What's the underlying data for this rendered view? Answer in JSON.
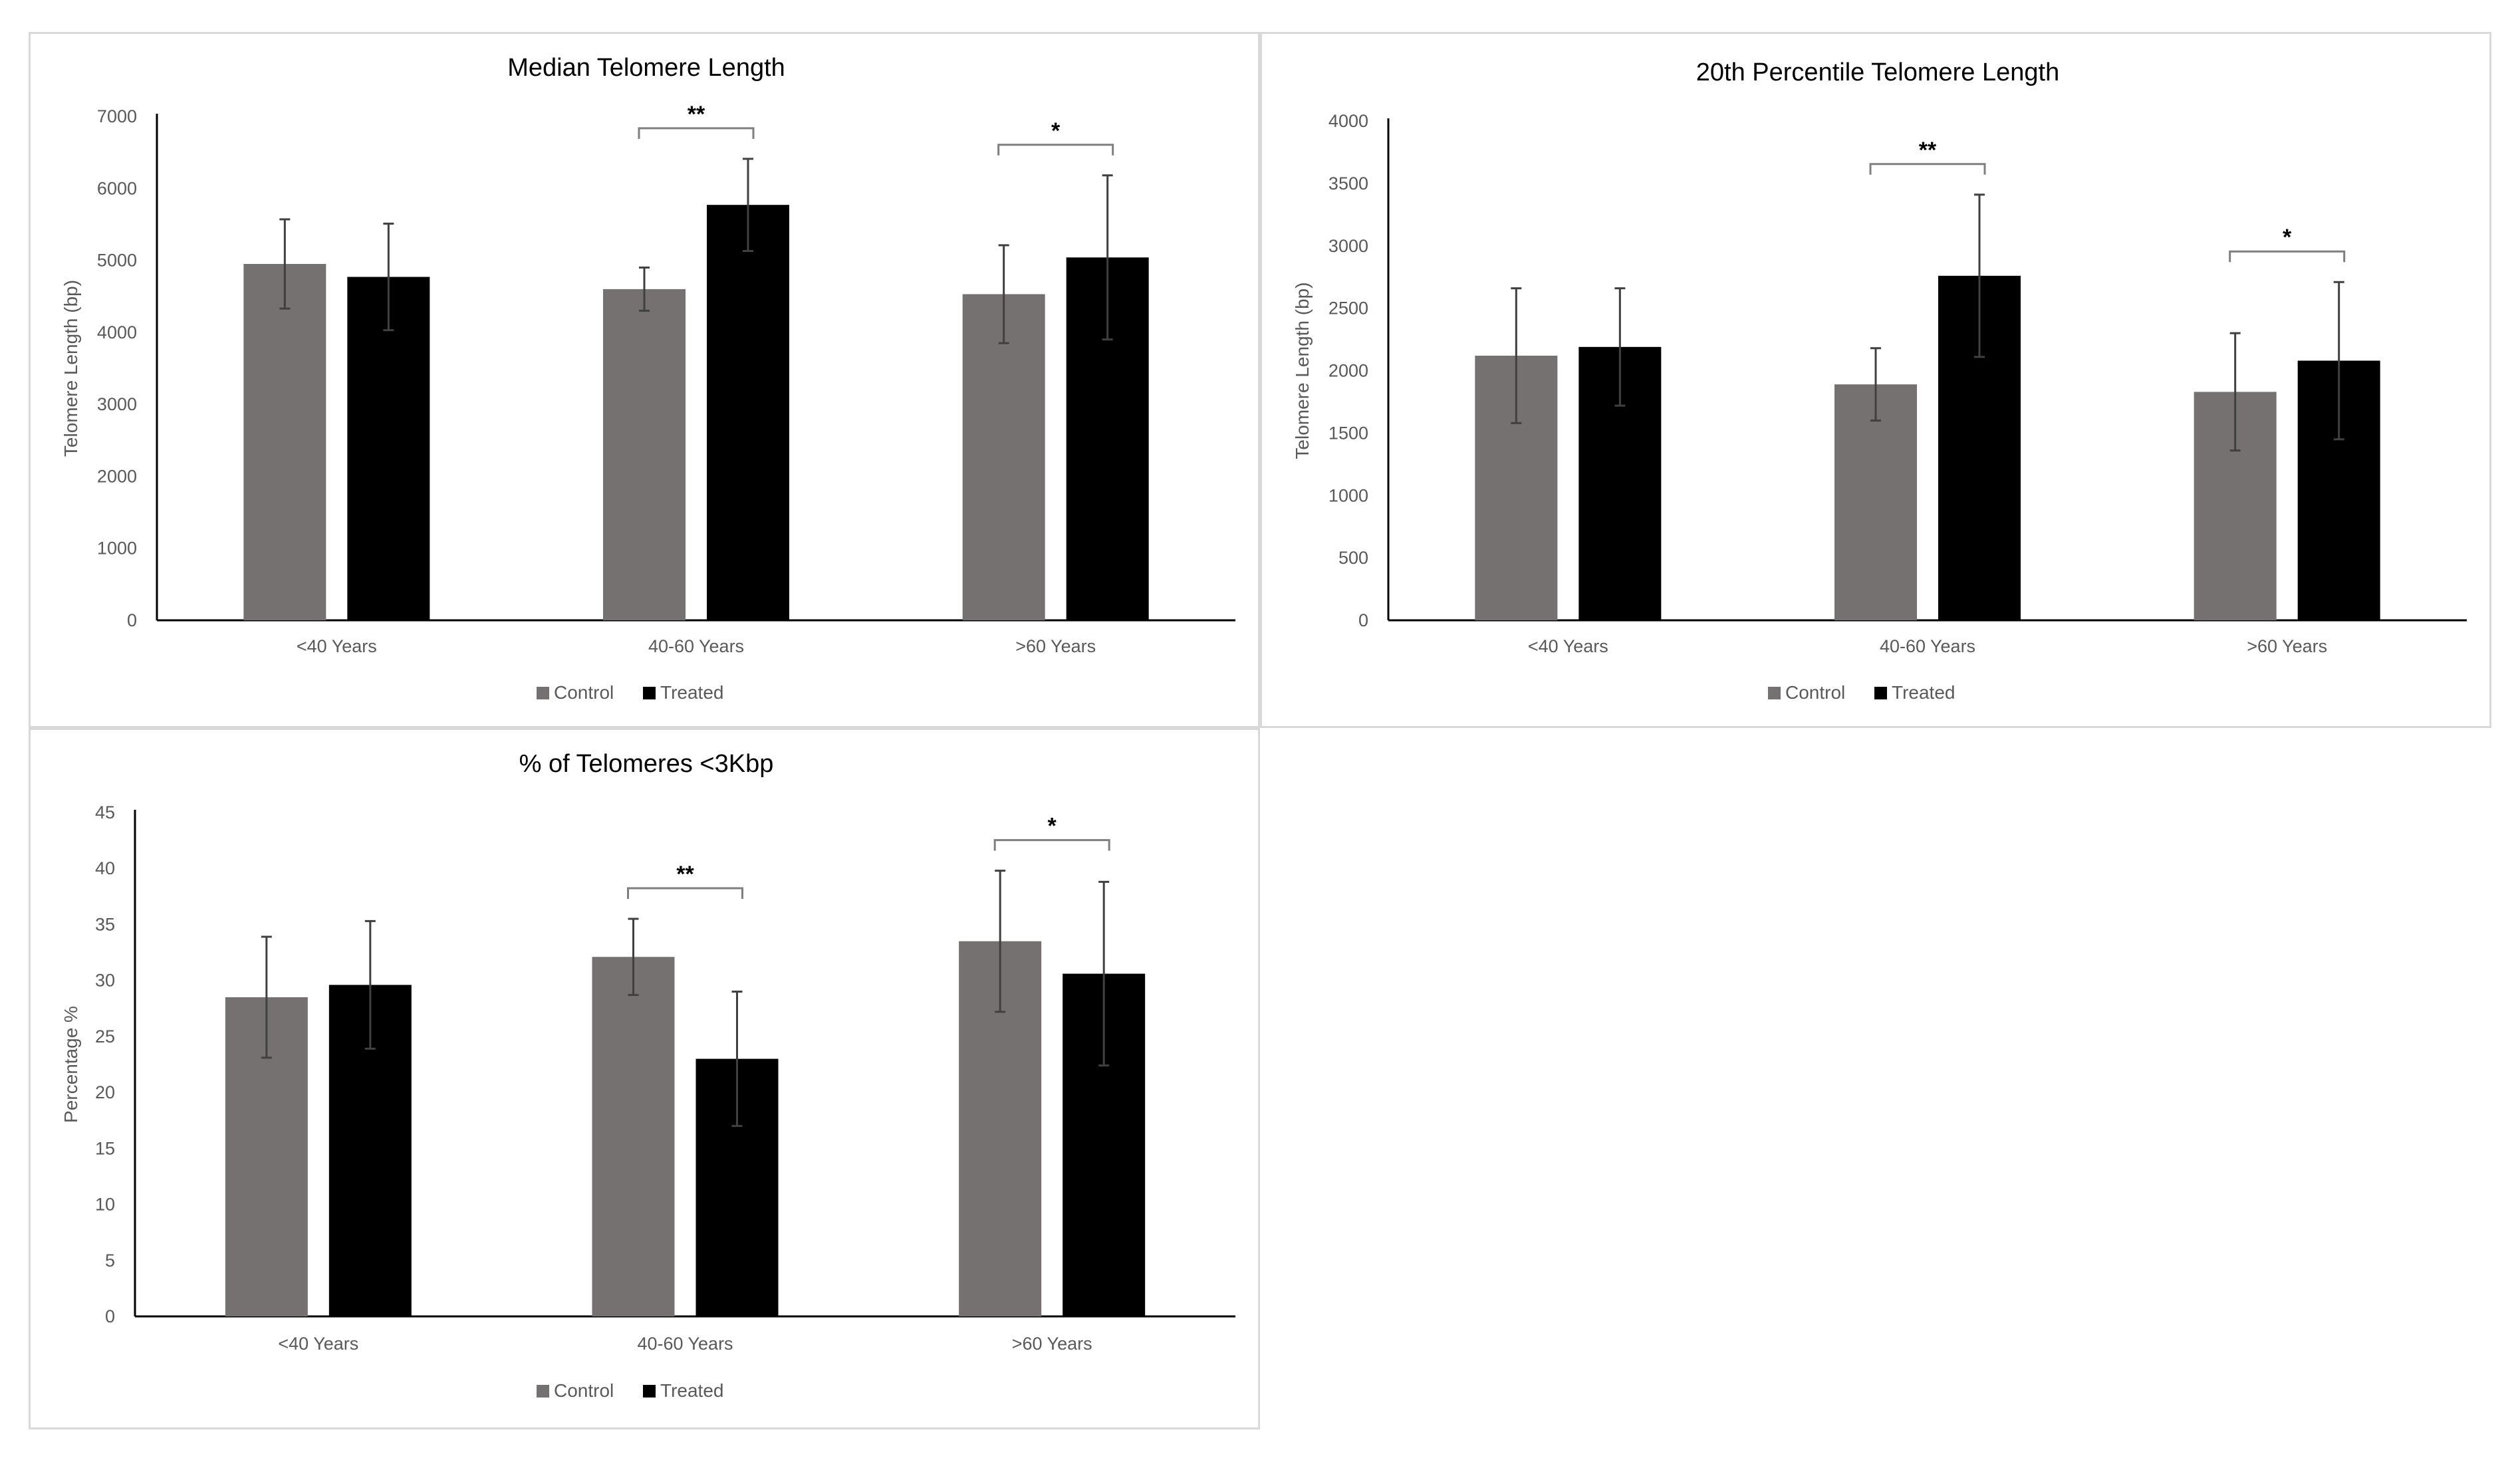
{
  "colors": {
    "control": "#757170",
    "treated": "#000000",
    "axis": "#000000",
    "errorbar": "#404040",
    "bracket": "#7f7f7f"
  },
  "chart_data": [
    {
      "type": "bar",
      "title": "Median Telomere Length",
      "xlabel": "",
      "ylabel": "Telomere Length (bp)",
      "ylim": [
        0,
        7000
      ],
      "yticks": [
        "0",
        "1000",
        "2000",
        "3000",
        "4000",
        "5000",
        "6000",
        "7000"
      ],
      "categories": [
        "<40 Years",
        "40-60 Years",
        ">60 Years"
      ],
      "series": [
        {
          "name": "Control",
          "values": [
            4950,
            4600,
            4530
          ],
          "errors": [
            620,
            300,
            680
          ]
        },
        {
          "name": "Treated",
          "values": [
            4770,
            5770,
            5040
          ],
          "errors": [
            740,
            640,
            1140
          ]
        }
      ],
      "significance": [
        {
          "category": "40-60 Years",
          "label": "**"
        },
        {
          "category": ">60 Years",
          "label": "*"
        }
      ],
      "legend": [
        "Control",
        "Treated"
      ]
    },
    {
      "type": "bar",
      "title": "20th Percentile Telomere Length",
      "xlabel": "",
      "ylabel": "Telomere Length (bp)",
      "ylim": [
        0,
        4000
      ],
      "yticks": [
        "0",
        "500",
        "1000",
        "1500",
        "2000",
        "2500",
        "3000",
        "3500",
        "4000"
      ],
      "categories": [
        "<40 Years",
        "40-60 Years",
        ">60 Years"
      ],
      "series": [
        {
          "name": "Control",
          "values": [
            2120,
            1890,
            1830
          ],
          "errors": [
            540,
            290,
            470
          ]
        },
        {
          "name": "Treated",
          "values": [
            2190,
            2760,
            2080
          ],
          "errors": [
            470,
            650,
            630
          ]
        }
      ],
      "significance": [
        {
          "category": "40-60 Years",
          "label": "**"
        },
        {
          "category": ">60 Years",
          "label": "*"
        }
      ],
      "legend": [
        "Control",
        "Treated"
      ]
    },
    {
      "type": "bar",
      "title": "% of Telomeres <3Kbp",
      "xlabel": "",
      "ylabel": "Percentage %",
      "ylim": [
        0,
        45
      ],
      "yticks": [
        "0",
        "5",
        "10",
        "15",
        "20",
        "25",
        "30",
        "35",
        "40",
        "45"
      ],
      "categories": [
        "<40 Years",
        "40-60 Years",
        ">60 Years"
      ],
      "series": [
        {
          "name": "Control",
          "values": [
            28.5,
            32.1,
            33.5
          ],
          "errors": [
            5.4,
            3.4,
            6.3
          ]
        },
        {
          "name": "Treated",
          "values": [
            29.6,
            23.0,
            30.6
          ],
          "errors": [
            5.7,
            6.0,
            8.2
          ]
        }
      ],
      "significance": [
        {
          "category": "40-60 Years",
          "label": "**"
        },
        {
          "category": ">60 Years",
          "label": "*"
        }
      ],
      "legend": [
        "Control",
        "Treated"
      ]
    }
  ]
}
